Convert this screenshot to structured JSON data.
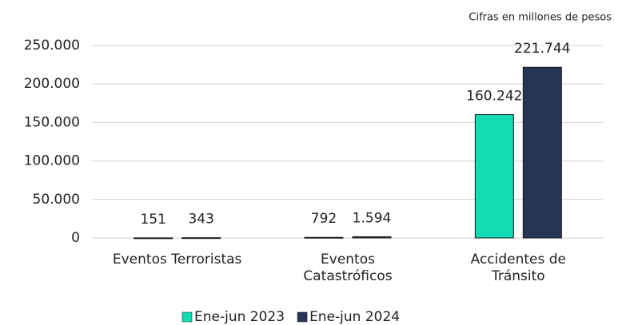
{
  "chart_data": {
    "type": "bar",
    "note": "Cifras en millones de pesos",
    "categories": [
      "Eventos Terroristas",
      "Eventos\nCatastróficos",
      "Accidentes de\nTránsito"
    ],
    "series": [
      {
        "name": "Ene-jun 2023",
        "color": "#12dcb4",
        "values": [
          151,
          792,
          160242
        ],
        "value_labels": [
          "151",
          "792",
          "160.242"
        ]
      },
      {
        "name": "Ene-jun 2024",
        "color": "#263456",
        "values": [
          343,
          1594,
          221744
        ],
        "value_labels": [
          "343",
          "1.594",
          "221.744"
        ]
      }
    ],
    "ylim": [
      0,
      250000
    ],
    "yticks": [
      0,
      {
        "value": 50000,
        "label": "50.000"
      },
      {
        "value": 100000,
        "label": "100.000"
      },
      {
        "value": 150000,
        "label": "150.000"
      },
      {
        "value": 200000,
        "label": "200.000"
      },
      {
        "value": 250000,
        "label": "250.000"
      }
    ],
    "grid": true,
    "legend": "bottom"
  }
}
